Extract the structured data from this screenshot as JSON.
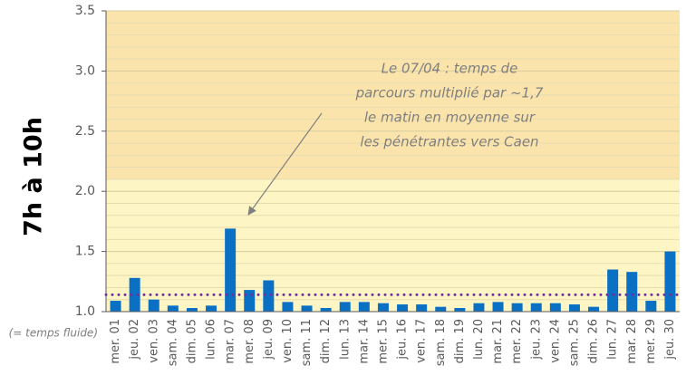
{
  "chart_data": {
    "type": "bar",
    "ylabel": "7h à 10h",
    "baseline_label": "(= temps fluide)",
    "annotation": [
      "Le 07/04 : temps de",
      "parcours multiplié par ~1,7",
      "le matin en moyenne sur",
      "les pénétrantes vers Caen"
    ],
    "categories": [
      "mer. 01",
      "jeu. 02",
      "ven. 03",
      "sam. 04",
      "dim. 05",
      "lun. 06",
      "mar. 07",
      "mer. 08",
      "jeu. 09",
      "ven. 10",
      "sam. 11",
      "dim. 12",
      "lun. 13",
      "mar. 14",
      "mer. 15",
      "jeu. 16",
      "ven. 17",
      "sam. 18",
      "dim. 19",
      "lun. 20",
      "mar. 21",
      "mer. 22",
      "jeu. 23",
      "ven. 24",
      "sam. 25",
      "dim. 26",
      "lun. 27",
      "mar. 28",
      "mer. 29",
      "jeu. 30"
    ],
    "values": [
      1.09,
      1.28,
      1.1,
      1.05,
      1.03,
      1.05,
      1.69,
      1.18,
      1.26,
      1.08,
      1.05,
      1.03,
      1.08,
      1.08,
      1.07,
      1.06,
      1.06,
      1.04,
      1.03,
      1.07,
      1.08,
      1.07,
      1.07,
      1.07,
      1.06,
      1.04,
      1.35,
      1.33,
      1.09,
      1.5
    ],
    "color": "#0a70c4",
    "ylim": [
      1.0,
      3.5
    ],
    "yticks": [
      {
        "value": 1.0,
        "label": "1.0"
      },
      1.5,
      {
        "value": 2.0,
        "label": "2.0"
      },
      2.5,
      {
        "value": 3.0,
        "label": "3.0"
      },
      3.5
    ],
    "minor_grid_step": 0.1,
    "bands": [
      {
        "from": 1.0,
        "to": 2.1,
        "color": "#fdf5c4"
      },
      {
        "from": 2.1,
        "to": 3.5,
        "color": "#fbe4ab"
      }
    ],
    "reference_line": {
      "value": 1.14,
      "color": "#7030a0"
    }
  }
}
